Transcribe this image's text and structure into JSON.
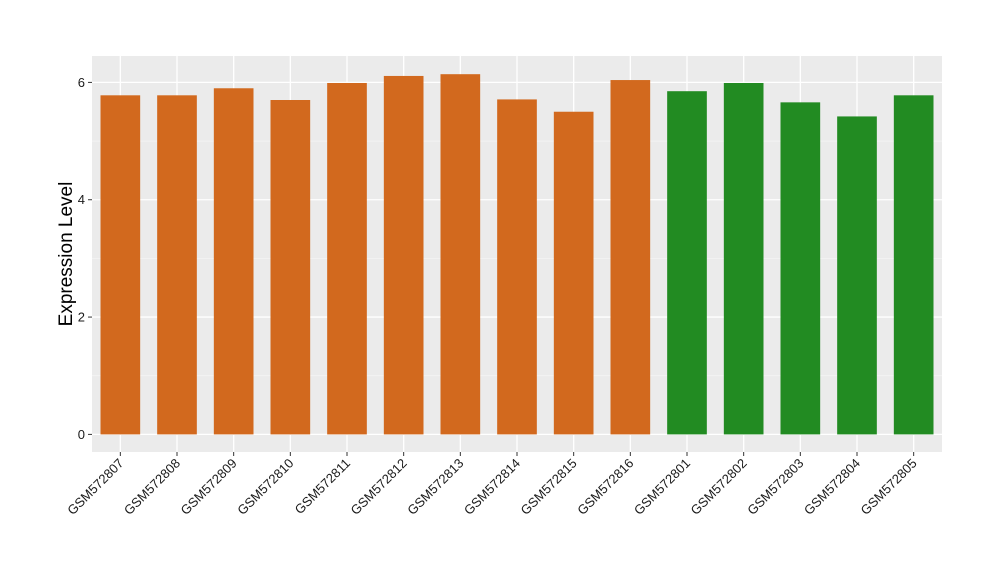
{
  "chart_data": {
    "type": "bar",
    "title": "",
    "xlabel": "",
    "ylabel": "Expression Level",
    "ylim": [
      -0.3,
      6.45
    ],
    "yticks": [
      0,
      2,
      4,
      6
    ],
    "grid": true,
    "legend": "none",
    "categories": [
      "GSM572807",
      "GSM572808",
      "GSM572809",
      "GSM572810",
      "GSM572811",
      "GSM572812",
      "GSM572813",
      "GSM572814",
      "GSM572815",
      "GSM572816",
      "GSM572801",
      "GSM572802",
      "GSM572803",
      "GSM572804",
      "GSM572805"
    ],
    "values": [
      5.78,
      5.78,
      5.9,
      5.7,
      5.99,
      6.11,
      6.14,
      5.71,
      5.5,
      6.04,
      5.85,
      5.99,
      5.66,
      5.42,
      5.78
    ],
    "bar_colors": [
      "#D2691E",
      "#D2691E",
      "#D2691E",
      "#D2691E",
      "#D2691E",
      "#D2691E",
      "#D2691E",
      "#D2691E",
      "#D2691E",
      "#D2691E",
      "#228B22",
      "#228B22",
      "#228B22",
      "#228B22",
      "#228B22"
    ]
  },
  "colors": {
    "panel_background": "#EBEBEB",
    "grid_major": "#FFFFFF",
    "grid_minor": "#F5F5F5",
    "tick": "#333333"
  }
}
